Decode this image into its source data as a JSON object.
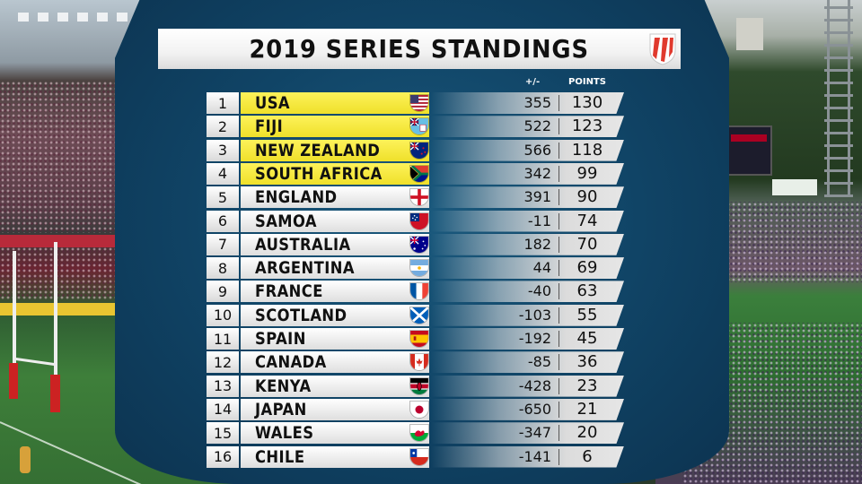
{
  "title": "2019 SERIES STANDINGS",
  "columns": {
    "diff": "+/-",
    "points": "POINTS"
  },
  "colors": {
    "highlight": "#f5e83a",
    "panel": "#104466",
    "row": "#e6e6e6"
  },
  "standings": [
    {
      "rank": "1",
      "team": "USA",
      "diff": "355",
      "points": "130",
      "flag": "usa-flag-icon"
    },
    {
      "rank": "2",
      "team": "FIJI",
      "diff": "522",
      "points": "123",
      "flag": "fiji-flag-icon"
    },
    {
      "rank": "3",
      "team": "NEW ZEALAND",
      "diff": "566",
      "points": "118",
      "flag": "new-zealand-flag-icon"
    },
    {
      "rank": "4",
      "team": "SOUTH AFRICA",
      "diff": "342",
      "points": "99",
      "flag": "south-africa-flag-icon"
    },
    {
      "rank": "5",
      "team": "ENGLAND",
      "diff": "391",
      "points": "90",
      "flag": "england-flag-icon"
    },
    {
      "rank": "6",
      "team": "SAMOA",
      "diff": "-11",
      "points": "74",
      "flag": "samoa-flag-icon"
    },
    {
      "rank": "7",
      "team": "AUSTRALIA",
      "diff": "182",
      "points": "70",
      "flag": "australia-flag-icon"
    },
    {
      "rank": "8",
      "team": "ARGENTINA",
      "diff": "44",
      "points": "69",
      "flag": "argentina-flag-icon"
    },
    {
      "rank": "9",
      "team": "FRANCE",
      "diff": "-40",
      "points": "63",
      "flag": "france-flag-icon"
    },
    {
      "rank": "10",
      "team": "SCOTLAND",
      "diff": "-103",
      "points": "55",
      "flag": "scotland-flag-icon"
    },
    {
      "rank": "11",
      "team": "SPAIN",
      "diff": "-192",
      "points": "45",
      "flag": "spain-flag-icon"
    },
    {
      "rank": "12",
      "team": "CANADA",
      "diff": "-85",
      "points": "36",
      "flag": "canada-flag-icon"
    },
    {
      "rank": "13",
      "team": "KENYA",
      "diff": "-428",
      "points": "23",
      "flag": "kenya-flag-icon"
    },
    {
      "rank": "14",
      "team": "JAPAN",
      "diff": "-650",
      "points": "21",
      "flag": "japan-flag-icon"
    },
    {
      "rank": "15",
      "team": "WALES",
      "diff": "-347",
      "points": "20",
      "flag": "wales-flag-icon"
    },
    {
      "rank": "16",
      "team": "CHILE",
      "diff": "-141",
      "points": "6",
      "flag": "chile-flag-icon"
    }
  ]
}
